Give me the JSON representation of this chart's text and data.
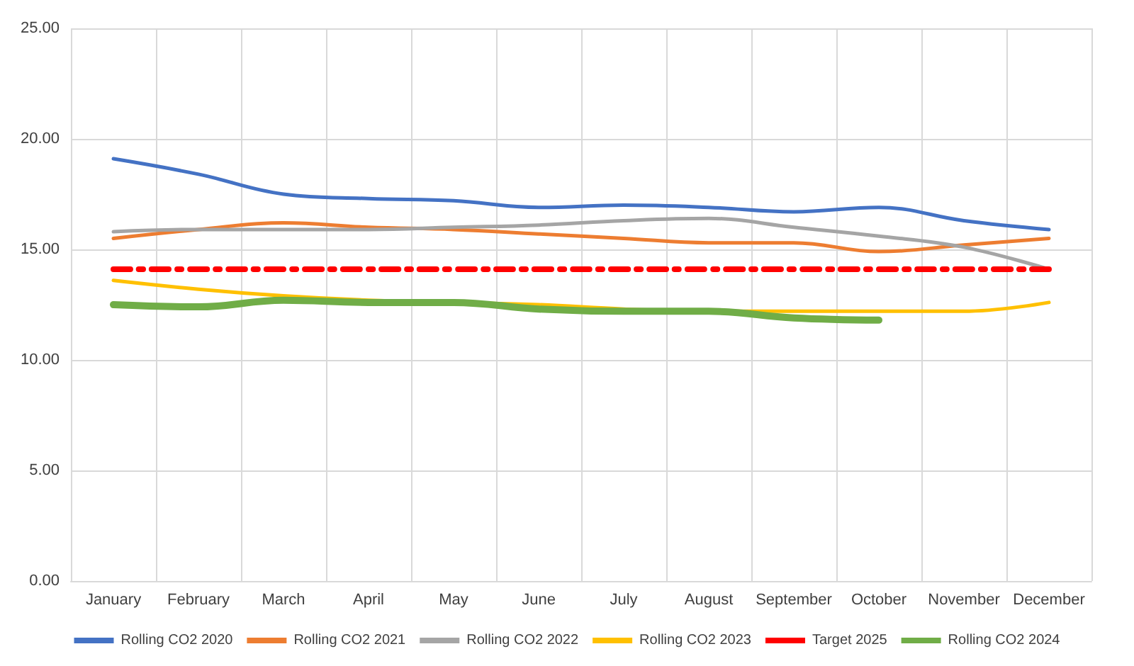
{
  "chart_data": {
    "type": "line",
    "categories": [
      "January",
      "February",
      "March",
      "April",
      "May",
      "June",
      "July",
      "August",
      "September",
      "October",
      "November",
      "December"
    ],
    "series": [
      {
        "name": "Rolling CO2 2020",
        "color": "#4472c4",
        "values": [
          19.1,
          18.4,
          17.5,
          17.3,
          17.2,
          16.9,
          17.0,
          16.9,
          16.7,
          16.9,
          16.3,
          15.9
        ]
      },
      {
        "name": "Rolling CO2 2021",
        "color": "#ed7d31",
        "values": [
          15.5,
          15.9,
          16.2,
          16.0,
          15.9,
          15.7,
          15.5,
          15.3,
          15.3,
          14.9,
          15.2,
          15.5
        ]
      },
      {
        "name": "Rolling CO2 2022",
        "color": "#a5a5a5",
        "values": [
          15.8,
          15.9,
          15.9,
          15.9,
          16.0,
          16.1,
          16.3,
          16.4,
          16.0,
          15.6,
          15.1,
          14.1
        ]
      },
      {
        "name": "Rolling CO2 2023",
        "color": "#ffc000",
        "values": [
          13.6,
          13.2,
          12.9,
          12.7,
          12.6,
          12.5,
          12.3,
          12.2,
          12.2,
          12.2,
          12.2,
          12.6
        ]
      },
      {
        "name": "Target 2025",
        "color": "#ff0000",
        "line_style": "dashed",
        "values": [
          14.1,
          14.1,
          14.1,
          14.1,
          14.1,
          14.1,
          14.1,
          14.1,
          14.1,
          14.1,
          14.1,
          14.1
        ]
      },
      {
        "name": "Rolling CO2 2024",
        "color": "#70ad47",
        "values": [
          12.5,
          12.4,
          12.7,
          12.6,
          12.6,
          12.3,
          12.2,
          12.2,
          11.9,
          11.8,
          null,
          null
        ]
      }
    ],
    "ylim": [
      0,
      25
    ],
    "yticks": [
      {
        "value": 0,
        "label": "0.00"
      },
      {
        "value": 5,
        "label": "5.00"
      },
      {
        "value": 10,
        "label": "10.00"
      },
      {
        "value": 15,
        "label": "15.00"
      },
      {
        "value": 20,
        "label": "20.00"
      },
      {
        "value": 25,
        "label": "25.00"
      }
    ],
    "grid": true,
    "legend": "bottom",
    "marker": "none",
    "line_style": "solid"
  }
}
